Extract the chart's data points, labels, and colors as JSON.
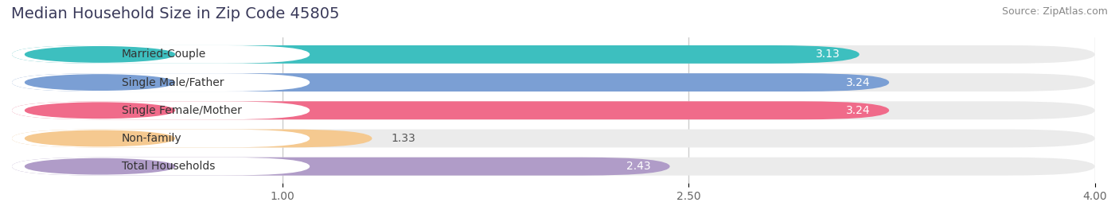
{
  "title": "Median Household Size in Zip Code 45805",
  "source": "Source: ZipAtlas.com",
  "categories": [
    "Married-Couple",
    "Single Male/Father",
    "Single Female/Mother",
    "Non-family",
    "Total Households"
  ],
  "values": [
    3.13,
    3.24,
    3.24,
    1.33,
    2.43
  ],
  "bar_colors": [
    "#3dbfbf",
    "#7b9fd4",
    "#f06b8a",
    "#f5c990",
    "#b09cc8"
  ],
  "xlim_max": 4.0,
  "xlim_min": 0.0,
  "xticks": [
    1.0,
    2.5,
    4.0
  ],
  "label_inside_threshold": 2.0,
  "background_color": "#ffffff",
  "bar_bg_color": "#ebebeb",
  "title_fontsize": 14,
  "source_fontsize": 9,
  "value_fontsize": 10,
  "tick_fontsize": 10,
  "category_fontsize": 10,
  "bar_height": 0.65,
  "fig_width": 14.06,
  "fig_height": 2.69
}
